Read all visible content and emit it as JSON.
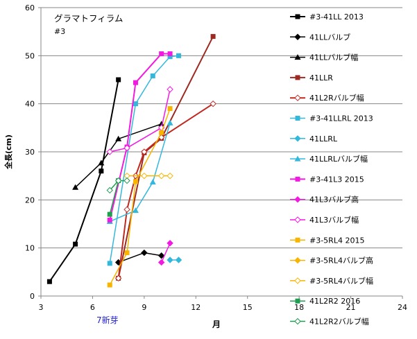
{
  "chart_data": {
    "type": "line",
    "title": "グラマトフィラム",
    "subtitle": "#3",
    "xlabel": "月",
    "ylabel": "全長(cm)",
    "annotation": "7新芽",
    "annotation_color": "#1f1fd0",
    "xlim": [
      3,
      24
    ],
    "ylim": [
      0,
      60
    ],
    "xticks": [
      3,
      6,
      9,
      12,
      15,
      18,
      21,
      24
    ],
    "yticks": [
      0,
      10,
      20,
      30,
      40,
      50,
      60
    ],
    "grid": "horizontal",
    "legend_position": "right",
    "series": [
      {
        "name": "#3-41LL 2013",
        "color": "#000000",
        "marker": "square",
        "width": 2,
        "points": [
          [
            3.5,
            3
          ],
          [
            5,
            10.8
          ],
          [
            6.5,
            26
          ],
          [
            7.5,
            45
          ]
        ]
      },
      {
        "name": "41LLバルブ",
        "color": "#000000",
        "marker": "diamond",
        "width": 1.5,
        "points": [
          [
            7.5,
            7
          ],
          [
            9,
            9
          ],
          [
            10,
            8.4
          ]
        ]
      },
      {
        "name": "41LLバルブ幅",
        "color": "#000000",
        "marker": "triangle",
        "width": 1.5,
        "points": [
          [
            5,
            22.6
          ],
          [
            6.5,
            27.7
          ],
          [
            7.5,
            32.7
          ],
          [
            10,
            35.8
          ]
        ]
      },
      {
        "name": "41LLR",
        "color": "#9c2a22",
        "marker": "square",
        "width": 2,
        "points": [
          [
            7.5,
            3.7
          ],
          [
            9,
            29.8
          ],
          [
            10,
            32.8
          ],
          [
            13,
            54
          ]
        ]
      },
      {
        "name": "41L2Rバルブ幅",
        "color": "#c0281e",
        "marker": "diamond-open",
        "width": 2,
        "points": [
          [
            7.5,
            3.7
          ],
          [
            8,
            18
          ],
          [
            8.5,
            25
          ],
          [
            9,
            30
          ],
          [
            10,
            33
          ],
          [
            13,
            40
          ]
        ]
      },
      {
        "name": "#3-41LLRL 2013",
        "color": "#33b8dc",
        "marker": "square",
        "width": 1.5,
        "points": [
          [
            7,
            6.8
          ],
          [
            8.5,
            40
          ],
          [
            9.5,
            45.8
          ],
          [
            10.5,
            49.8
          ],
          [
            11,
            50
          ]
        ]
      },
      {
        "name": "41LLRL",
        "color": "#33b8dc",
        "marker": "diamond",
        "width": 1.5,
        "points": [
          [
            10.5,
            7.5
          ],
          [
            11,
            7.5
          ]
        ]
      },
      {
        "name": "41LLRLバルブ幅",
        "color": "#33b8dc",
        "marker": "triangle",
        "width": 1.5,
        "points": [
          [
            7,
            15.5
          ],
          [
            8.5,
            17.8
          ],
          [
            9.5,
            23.7
          ],
          [
            10.5,
            36
          ]
        ]
      },
      {
        "name": "#3-41L3 2015",
        "color": "#f21ae0",
        "marker": "square",
        "width": 2,
        "points": [
          [
            7,
            15.8
          ],
          [
            8,
            31
          ],
          [
            8.5,
            44.4
          ],
          [
            10,
            50.4
          ],
          [
            10.5,
            50.4
          ]
        ]
      },
      {
        "name": "41L3バルブ高",
        "color": "#f21ae0",
        "marker": "diamond",
        "width": 1.5,
        "points": [
          [
            10,
            7
          ],
          [
            10.5,
            11
          ]
        ]
      },
      {
        "name": "41L3バルブ幅",
        "color": "#f21ae0",
        "marker": "diamond-open",
        "width": 1.5,
        "points": [
          [
            7,
            30
          ],
          [
            8,
            30.8
          ],
          [
            10,
            35
          ],
          [
            10.5,
            43
          ]
        ]
      },
      {
        "name": "#3-5RL4 2015",
        "color": "#f7b500",
        "marker": "square",
        "width": 1.5,
        "points": [
          [
            7,
            2.3
          ],
          [
            8,
            9
          ],
          [
            8.5,
            23.8
          ],
          [
            10,
            34
          ],
          [
            10.5,
            39
          ]
        ]
      },
      {
        "name": "#3-5RL4バルブ高",
        "color": "#f7b500",
        "marker": "diamond",
        "width": 1.5,
        "points": []
      },
      {
        "name": "#3-5RL4バルブ幅",
        "color": "#f7b500",
        "marker": "diamond-open",
        "width": 1.5,
        "points": [
          [
            8,
            25
          ],
          [
            9,
            25
          ],
          [
            10,
            25
          ],
          [
            10.5,
            25
          ]
        ]
      },
      {
        "name": "41L2R2 2016",
        "color": "#1f9e50",
        "marker": "square",
        "width": 1.5,
        "points": [
          [
            7,
            17
          ],
          [
            7.5,
            24
          ]
        ]
      },
      {
        "name": "41L2R2バルブ幅",
        "color": "#1f9e50",
        "marker": "diamond-open",
        "width": 1.5,
        "points": [
          [
            7,
            22
          ],
          [
            7.5,
            24
          ],
          [
            8,
            24
          ]
        ]
      }
    ]
  }
}
